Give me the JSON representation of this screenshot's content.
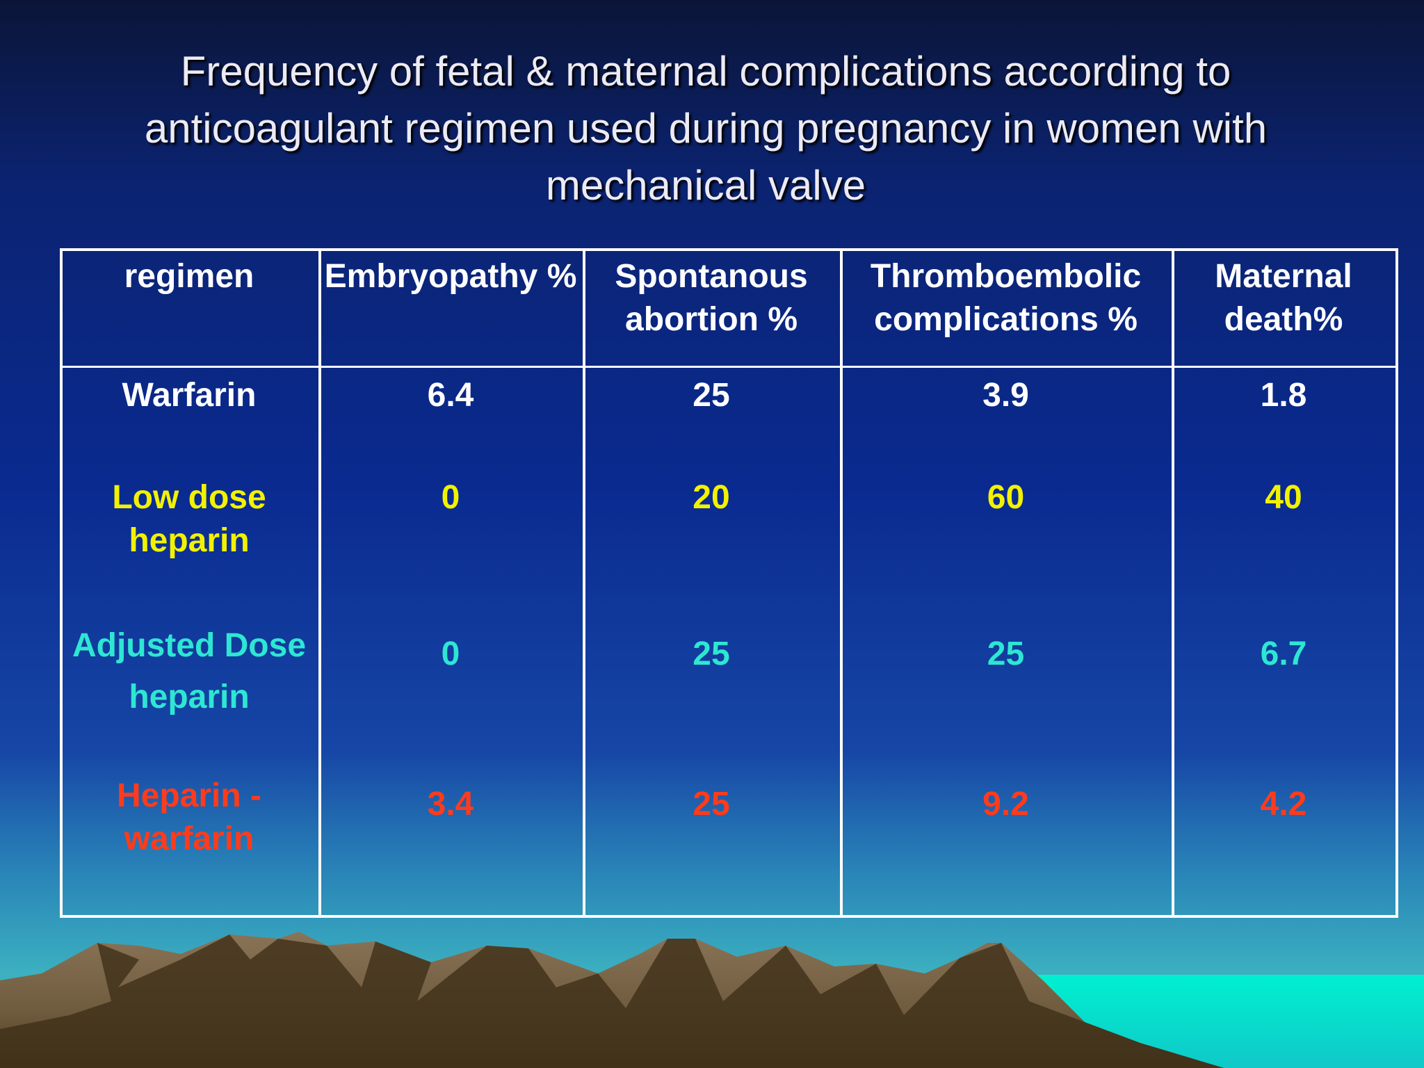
{
  "title": "Frequency of fetal & maternal complications according to anticoagulant regimen used during pregnancy in women with mechanical valve",
  "table": {
    "header": [
      "regimen",
      "Embryopathy %",
      "Spontanous abortion %",
      "Thromboembolic complications %",
      "Maternal death%"
    ],
    "rows": [
      [
        "Warfarin",
        "6.4",
        "25",
        "3.9",
        "1.8"
      ],
      [
        "Low dose heparin",
        "0",
        "20",
        "60",
        "40"
      ],
      [
        "Adjusted Dose heparin",
        "0",
        "25",
        "25",
        "6.7"
      ],
      [
        "Heparin - warfarin",
        "3.4",
        "25",
        "9.2",
        "4.2"
      ]
    ]
  }
}
